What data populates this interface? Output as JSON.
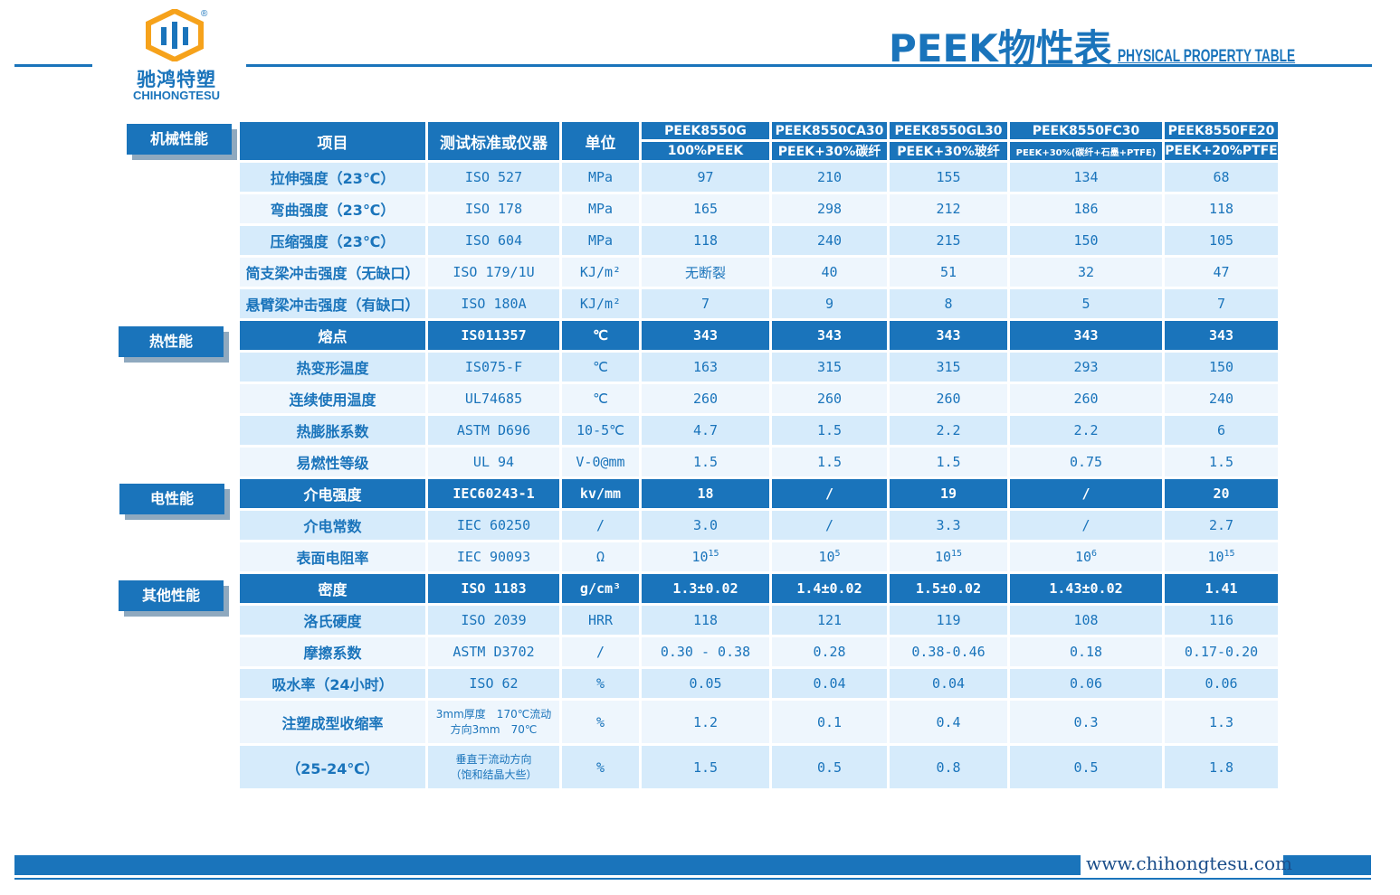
{
  "brand": {
    "name_cn": "驰鸿特塑",
    "name_en": "CHIHONGTESU",
    "registered": "®",
    "color": "#1a74bb"
  },
  "header": {
    "title": "PEEK物性表",
    "subtitle": "PHYSICAL PROPERTY TABLE"
  },
  "categories": {
    "mechanical": "机械性能",
    "thermal": "热性能",
    "electrical": "电性能",
    "other": "其他性能"
  },
  "table": {
    "col_item": "项目",
    "col_standard": "测试标准或仪器",
    "col_unit": "单位",
    "grades": [
      {
        "model": "PEEK8550G",
        "desc": "100%PEEK"
      },
      {
        "model": "PEEK8550CA30",
        "desc": "PEEK+30%碳纤"
      },
      {
        "model": "PEEK8550GL30",
        "desc": "PEEK+30%玻纤"
      },
      {
        "model": "PEEK8550FC30",
        "desc": "PEEK+30%(碳纤+石墨+PTFE)"
      },
      {
        "model": "PEEK8550FE20",
        "desc": "PEEK+20%PTFE"
      }
    ],
    "rows": [
      {
        "name": "拉伸强度（23℃）",
        "std": "ISO 527",
        "unit": "MPa",
        "v": [
          "97",
          "210",
          "155",
          "134",
          "68"
        ]
      },
      {
        "name": "弯曲强度（23℃）",
        "std": "ISO 178",
        "unit": "MPa",
        "v": [
          "165",
          "298",
          "212",
          "186",
          "118"
        ]
      },
      {
        "name": "压缩强度（23℃）",
        "std": "ISO 604",
        "unit": "MPa",
        "v": [
          "118",
          "240",
          "215",
          "150",
          "105"
        ]
      },
      {
        "name": "简支梁冲击强度（无缺口）",
        "std": "ISO 179/1U",
        "unit": "KJ/m²",
        "v": [
          "无断裂",
          "40",
          "51",
          "32",
          "47"
        ]
      },
      {
        "name": "悬臂梁冲击强度（有缺口）",
        "std": "ISO 180A",
        "unit": "KJ/m²",
        "v": [
          "7",
          "9",
          "8",
          "5",
          "7"
        ]
      },
      {
        "name": "熔点",
        "std": "IS011357",
        "unit": "℃",
        "v": [
          "343",
          "343",
          "343",
          "343",
          "343"
        ]
      },
      {
        "name": "热变形温度",
        "std": "IS075-F",
        "unit": "℃",
        "v": [
          "163",
          "315",
          "315",
          "293",
          "150"
        ]
      },
      {
        "name": "连续使用温度",
        "std": "UL74685",
        "unit": "℃",
        "v": [
          "260",
          "260",
          "260",
          "260",
          "240"
        ]
      },
      {
        "name": "热膨胀系数",
        "std": "ASTM D696",
        "unit": "10-5℃",
        "v": [
          "4.7",
          "1.5",
          "2.2",
          "2.2",
          "6"
        ]
      },
      {
        "name": "易燃性等级",
        "std": "UL 94",
        "unit": "V-0@mm",
        "v": [
          "1.5",
          "1.5",
          "1.5",
          "0.75",
          "1.5"
        ]
      },
      {
        "name": "介电强度",
        "std": "IEC60243-1",
        "unit": "kv/mm",
        "v": [
          "18",
          "/",
          "19",
          "/",
          "20"
        ]
      },
      {
        "name": "介电常数",
        "std": "IEC 60250",
        "unit": "/",
        "v": [
          "3.0",
          "/",
          "3.3",
          "/",
          "2.7"
        ]
      },
      {
        "name": "表面电阻率",
        "std": "IEC 90093",
        "unit": "Ω",
        "v": [
          "10",
          "10",
          "10",
          "10",
          "10"
        ],
        "exp": [
          "15",
          "5",
          "15",
          "6",
          "15"
        ]
      },
      {
        "name": "密度",
        "std": "ISO 1183",
        "unit": "g/cm³",
        "v": [
          "1.3±0.02",
          "1.4±0.02",
          "1.5±0.02",
          "1.43±0.02",
          "1.41"
        ]
      },
      {
        "name": "洛氏硬度",
        "std": "ISO 2039",
        "unit": "HRR",
        "v": [
          "118",
          "121",
          "119",
          "108",
          "116"
        ]
      },
      {
        "name": "摩擦系数",
        "std": "ASTM D3702",
        "unit": "/",
        "v": [
          "0.30 - 0.38",
          "0.28",
          "0.38-0.46",
          "0.18",
          "0.17-0.20"
        ]
      },
      {
        "name": "吸水率（24小时）",
        "std": "ISO 62",
        "unit": "%",
        "v": [
          "0.05",
          "0.04",
          "0.04",
          "0.06",
          "0.06"
        ]
      },
      {
        "name": "注塑成型收缩率",
        "std_l1": "3mm厚度　170℃流动",
        "std_l2": "方向3mm　70℃",
        "unit": "%",
        "v": [
          "1.2",
          "0.1",
          "0.4",
          "0.3",
          "1.3"
        ]
      },
      {
        "name": "（25-24℃）",
        "std_l1": "垂直于流动方向",
        "std_l2": "（饱和结晶大些）",
        "unit": "%",
        "v": [
          "1.5",
          "0.5",
          "0.8",
          "0.5",
          "1.8"
        ]
      }
    ]
  },
  "footer": {
    "url": "www.chihongtesu.com"
  }
}
